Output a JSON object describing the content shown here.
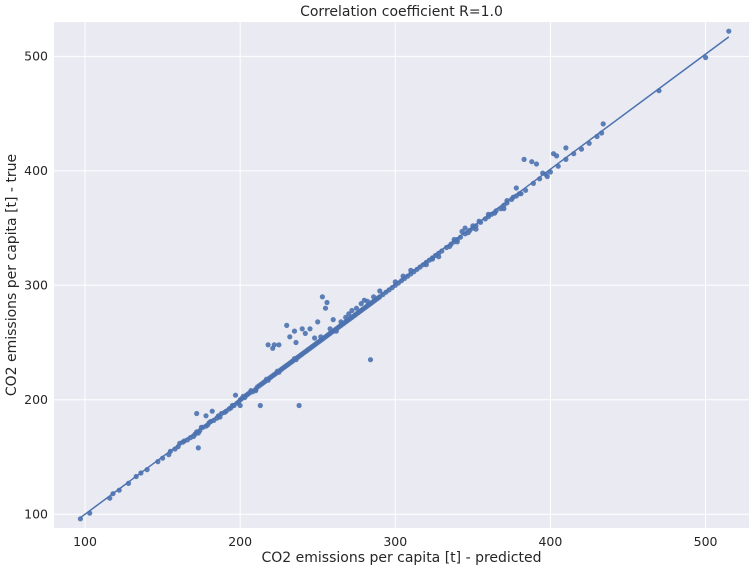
{
  "chart_data": {
    "type": "scatter",
    "title": "Correlation coefficient R=1.0",
    "xlabel": "CO2 emissions per capita [t] - predicted",
    "ylabel": "CO2 emissions per capita [t] - true",
    "xlim": [
      80,
      528
    ],
    "ylim": [
      88,
      530
    ],
    "xticks": [
      100,
      200,
      300,
      400,
      500
    ],
    "yticks": [
      100,
      200,
      300,
      400,
      500
    ],
    "xtick_labels": [
      "100",
      "200",
      "300",
      "400",
      "500"
    ],
    "ytick_labels": [
      "100",
      "200",
      "300",
      "400",
      "500"
    ],
    "grid": true,
    "style": "seaborn-darkgrid",
    "colors": {
      "background": "#eaeaf2",
      "grid": "#ffffff",
      "point": "#4c72b0",
      "line": "#4c72b0"
    },
    "fit_line": {
      "x": [
        97,
        515
      ],
      "y": [
        97,
        517
      ]
    },
    "series": [
      {
        "points": [
          [
            97,
            96
          ],
          [
            103,
            101
          ],
          [
            116,
            114
          ],
          [
            118,
            118
          ],
          [
            122,
            121
          ],
          [
            128,
            127
          ],
          [
            133,
            133
          ],
          [
            136,
            136
          ],
          [
            140,
            139
          ],
          [
            147,
            146
          ],
          [
            150,
            149
          ],
          [
            154,
            152
          ],
          [
            155,
            155
          ],
          [
            158,
            157
          ],
          [
            160,
            159
          ],
          [
            161,
            162
          ],
          [
            163,
            163
          ],
          [
            164,
            164
          ],
          [
            166,
            165
          ],
          [
            168,
            167
          ],
          [
            170,
            168
          ],
          [
            171,
            170
          ],
          [
            172,
            172
          ],
          [
            173,
            171
          ],
          [
            174,
            173
          ],
          [
            175,
            176
          ],
          [
            176,
            176
          ],
          [
            178,
            177
          ],
          [
            179,
            178
          ],
          [
            180,
            180
          ],
          [
            181,
            181
          ],
          [
            183,
            182
          ],
          [
            185,
            184
          ],
          [
            186,
            186
          ],
          [
            187,
            185
          ],
          [
            188,
            188
          ],
          [
            190,
            189
          ],
          [
            191,
            190
          ],
          [
            193,
            192
          ],
          [
            194,
            193
          ],
          [
            195,
            195
          ],
          [
            196,
            195
          ],
          [
            198,
            197
          ],
          [
            199,
            198
          ],
          [
            200,
            200
          ],
          [
            201,
            201
          ],
          [
            202,
            203
          ],
          [
            203,
            202
          ],
          [
            204,
            204
          ],
          [
            205,
            205
          ],
          [
            206,
            206
          ],
          [
            207,
            208
          ],
          [
            208,
            207
          ],
          [
            210,
            209
          ],
          [
            211,
            211
          ],
          [
            212,
            212
          ],
          [
            213,
            213
          ],
          [
            214,
            214
          ],
          [
            215,
            215
          ],
          [
            216,
            216
          ],
          [
            217,
            218
          ],
          [
            218,
            217
          ],
          [
            219,
            219
          ],
          [
            220,
            220
          ],
          [
            221,
            221
          ],
          [
            222,
            222
          ],
          [
            223,
            223
          ],
          [
            224,
            225
          ],
          [
            225,
            224
          ],
          [
            226,
            226
          ],
          [
            227,
            227
          ],
          [
            228,
            228
          ],
          [
            229,
            229
          ],
          [
            230,
            230
          ],
          [
            231,
            231
          ],
          [
            232,
            232
          ],
          [
            233,
            233
          ],
          [
            234,
            234
          ],
          [
            235,
            236
          ],
          [
            236,
            235
          ],
          [
            237,
            237
          ],
          [
            238,
            238
          ],
          [
            239,
            239
          ],
          [
            240,
            240
          ],
          [
            241,
            241
          ],
          [
            242,
            242
          ],
          [
            243,
            243
          ],
          [
            244,
            244
          ],
          [
            245,
            245
          ],
          [
            246,
            246
          ],
          [
            247,
            247
          ],
          [
            248,
            248
          ],
          [
            249,
            249
          ],
          [
            250,
            250
          ],
          [
            251,
            251
          ],
          [
            252,
            252
          ],
          [
            253,
            253
          ],
          [
            254,
            254
          ],
          [
            255,
            255
          ],
          [
            256,
            256
          ],
          [
            257,
            257
          ],
          [
            258,
            258
          ],
          [
            259,
            259
          ],
          [
            260,
            260
          ],
          [
            261,
            261
          ],
          [
            262,
            262
          ],
          [
            263,
            263
          ],
          [
            264,
            264
          ],
          [
            265,
            265
          ],
          [
            266,
            266
          ],
          [
            267,
            267
          ],
          [
            268,
            268
          ],
          [
            269,
            269
          ],
          [
            270,
            270
          ],
          [
            271,
            271
          ],
          [
            272,
            272
          ],
          [
            273,
            273
          ],
          [
            274,
            274
          ],
          [
            275,
            275
          ],
          [
            276,
            276
          ],
          [
            277,
            277
          ],
          [
            278,
            278
          ],
          [
            279,
            279
          ],
          [
            280,
            280
          ],
          [
            281,
            281
          ],
          [
            282,
            282
          ],
          [
            283,
            283
          ],
          [
            284,
            284
          ],
          [
            285,
            285
          ],
          [
            286,
            286
          ],
          [
            287,
            287
          ],
          [
            288,
            288
          ],
          [
            289,
            289
          ],
          [
            290,
            290
          ],
          [
            292,
            292
          ],
          [
            294,
            294
          ],
          [
            296,
            296
          ],
          [
            298,
            298
          ],
          [
            300,
            300
          ],
          [
            302,
            302
          ],
          [
            304,
            304
          ],
          [
            306,
            306
          ],
          [
            308,
            308
          ],
          [
            310,
            310
          ],
          [
            312,
            312
          ],
          [
            314,
            314
          ],
          [
            316,
            316
          ],
          [
            318,
            318
          ],
          [
            320,
            320
          ],
          [
            322,
            322
          ],
          [
            324,
            324
          ],
          [
            326,
            326
          ],
          [
            328,
            328
          ],
          [
            330,
            330
          ],
          [
            333,
            333
          ],
          [
            336,
            336
          ],
          [
            338,
            338
          ],
          [
            340,
            340
          ],
          [
            342,
            342
          ],
          [
            345,
            345
          ],
          [
            348,
            348
          ],
          [
            350,
            350
          ],
          [
            352,
            352
          ],
          [
            355,
            355
          ],
          [
            358,
            358
          ],
          [
            360,
            360
          ],
          [
            362,
            362
          ],
          [
            365,
            365
          ],
          [
            368,
            367
          ],
          [
            370,
            370
          ],
          [
            372,
            372
          ],
          [
            375,
            375
          ],
          [
            378,
            378
          ],
          [
            380,
            380
          ],
          [
            384,
            383
          ],
          [
            389,
            389
          ],
          [
            393,
            393
          ],
          [
            397,
            397
          ],
          [
            400,
            399
          ],
          [
            405,
            404
          ],
          [
            410,
            410
          ],
          [
            415,
            415
          ],
          [
            420,
            419
          ],
          [
            425,
            424
          ],
          [
            430,
            430
          ],
          [
            433,
            433
          ],
          [
            434,
            441
          ],
          [
            470,
            470
          ],
          [
            500,
            499
          ],
          [
            515,
            522
          ],
          [
            172,
            188
          ],
          [
            173,
            158
          ],
          [
            178,
            186
          ],
          [
            182,
            190
          ],
          [
            197,
            204
          ],
          [
            200,
            195
          ],
          [
            210,
            208
          ],
          [
            213,
            195
          ],
          [
            218,
            248
          ],
          [
            221,
            245
          ],
          [
            222,
            248
          ],
          [
            225,
            248
          ],
          [
            230,
            265
          ],
          [
            232,
            255
          ],
          [
            235,
            260
          ],
          [
            236,
            250
          ],
          [
            238,
            195
          ],
          [
            240,
            262
          ],
          [
            242,
            258
          ],
          [
            245,
            262
          ],
          [
            248,
            254
          ],
          [
            250,
            268
          ],
          [
            252,
            255
          ],
          [
            253,
            290
          ],
          [
            255,
            280
          ],
          [
            256,
            285
          ],
          [
            258,
            262
          ],
          [
            260,
            270
          ],
          [
            262,
            260
          ],
          [
            265,
            268
          ],
          [
            268,
            272
          ],
          [
            270,
            275
          ],
          [
            272,
            278
          ],
          [
            275,
            280
          ],
          [
            278,
            284
          ],
          [
            280,
            287
          ],
          [
            282,
            286
          ],
          [
            284,
            235
          ],
          [
            286,
            290
          ],
          [
            290,
            295
          ],
          [
            300,
            303
          ],
          [
            305,
            308
          ],
          [
            310,
            313
          ],
          [
            320,
            318
          ],
          [
            324,
            323
          ],
          [
            328,
            325
          ],
          [
            335,
            334
          ],
          [
            338,
            340
          ],
          [
            340,
            338
          ],
          [
            343,
            347
          ],
          [
            345,
            350
          ],
          [
            347,
            346
          ],
          [
            350,
            352
          ],
          [
            352,
            349
          ],
          [
            354,
            356
          ],
          [
            360,
            362
          ],
          [
            364,
            363
          ],
          [
            370,
            367
          ],
          [
            372,
            374
          ],
          [
            376,
            377
          ],
          [
            378,
            385
          ],
          [
            381,
            380
          ],
          [
            383,
            410
          ],
          [
            388,
            408
          ],
          [
            391,
            406
          ],
          [
            395,
            398
          ],
          [
            398,
            395
          ],
          [
            402,
            415
          ],
          [
            404,
            413
          ],
          [
            410,
            420
          ]
        ]
      }
    ]
  }
}
